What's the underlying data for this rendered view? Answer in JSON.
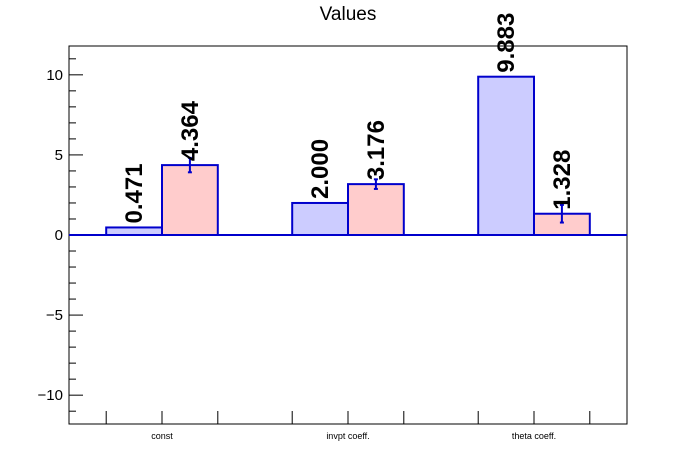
{
  "chart_data": {
    "type": "bar",
    "title": "Values",
    "xlabel": "",
    "ylabel": "",
    "ylim": [
      -11.8,
      11.8
    ],
    "yticks": [
      -10,
      -5,
      0,
      5,
      10
    ],
    "ytick_labels": [
      "−10",
      "−5",
      "0",
      "5",
      "10"
    ],
    "categories": [
      "const",
      "invpt coeff.",
      "theta coeff."
    ],
    "series": [
      {
        "values": [
          0.471,
          2.0,
          9.883
        ],
        "labels": [
          "0.471",
          "2.000",
          "9.883"
        ],
        "color": "#ccccff",
        "edge": "#0000cc"
      },
      {
        "values": [
          4.364,
          3.176,
          1.328
        ],
        "labels": [
          "4.364",
          "3.176",
          "1.328"
        ],
        "errors": [
          0.45,
          0.3,
          0.55
        ],
        "color": "#ffcccc",
        "edge": "#0000cc"
      }
    ],
    "grid": false,
    "legend": "none"
  }
}
